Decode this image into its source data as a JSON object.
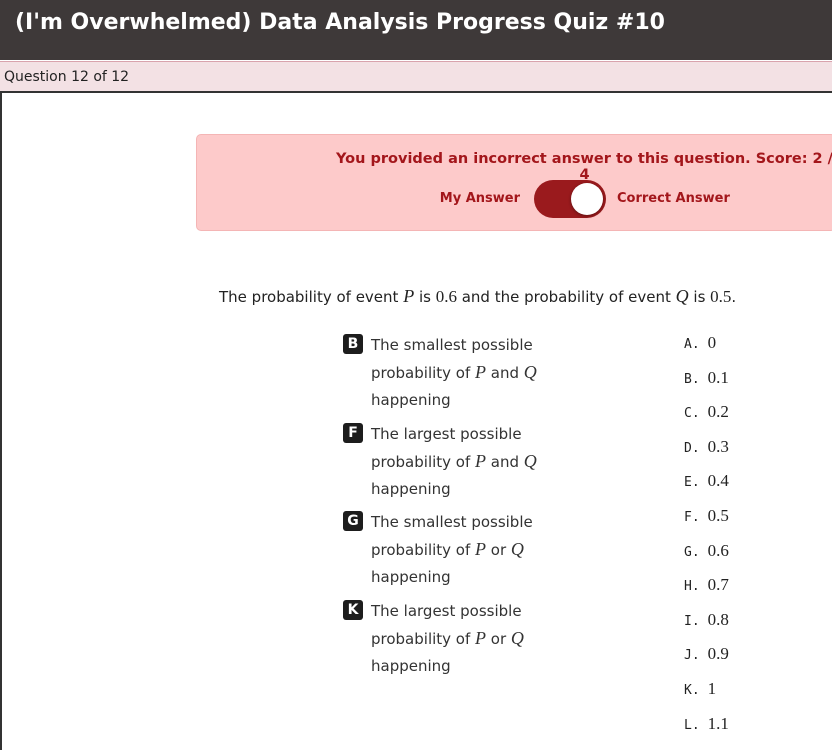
{
  "header": {
    "title": "(I'm Overwhelmed) Data Analysis Progress Quiz #10"
  },
  "progress": "Question 12 of 12",
  "feedback": {
    "message": "You provided an incorrect answer to this question. Score: 2 / 4",
    "left_label": "My Answer",
    "right_label": "Correct Answer",
    "toggle_on": true
  },
  "prompt": [
    {
      "text": "The probability of event "
    },
    {
      "text": "P",
      "style": "var"
    },
    {
      "text": " is "
    },
    {
      "text": "0.6",
      "style": "num"
    },
    {
      "text": " and the probability of event "
    },
    {
      "text": "Q",
      "style": "var"
    },
    {
      "text": " is "
    },
    {
      "text": "0.5",
      "style": "num"
    },
    {
      "text": "."
    }
  ],
  "items": [
    {
      "letter": "B",
      "text": [
        {
          "text": "The smallest possible probability of "
        },
        {
          "text": "P",
          "style": "var"
        },
        {
          "text": " and "
        },
        {
          "text": "Q",
          "style": "var"
        },
        {
          "text": " happening"
        }
      ]
    },
    {
      "letter": "F",
      "text": [
        {
          "text": "The largest possible probability of "
        },
        {
          "text": "P",
          "style": "var"
        },
        {
          "text": " and "
        },
        {
          "text": "Q",
          "style": "var"
        },
        {
          "text": " happening"
        }
      ]
    },
    {
      "letter": "G",
      "text": [
        {
          "text": "The smallest possible probability of "
        },
        {
          "text": "P",
          "style": "var"
        },
        {
          "text": " or "
        },
        {
          "text": "Q",
          "style": "var"
        },
        {
          "text": " happening"
        }
      ]
    },
    {
      "letter": "K",
      "text": [
        {
          "text": "The largest possible probability of "
        },
        {
          "text": "P",
          "style": "var"
        },
        {
          "text": " or "
        },
        {
          "text": "Q",
          "style": "var"
        },
        {
          "text": " happening"
        }
      ]
    }
  ],
  "options": [
    {
      "letter": "A.",
      "value": "0"
    },
    {
      "letter": "B.",
      "value": "0.1"
    },
    {
      "letter": "C.",
      "value": "0.2"
    },
    {
      "letter": "D.",
      "value": "0.3"
    },
    {
      "letter": "E.",
      "value": "0.4"
    },
    {
      "letter": "F.",
      "value": "0.5"
    },
    {
      "letter": "G.",
      "value": "0.6"
    },
    {
      "letter": "H.",
      "value": "0.7"
    },
    {
      "letter": "I.",
      "value": "0.8"
    },
    {
      "letter": "J.",
      "value": "0.9"
    },
    {
      "letter": "K.",
      "value": "1"
    },
    {
      "letter": "L.",
      "value": "1.1"
    }
  ]
}
